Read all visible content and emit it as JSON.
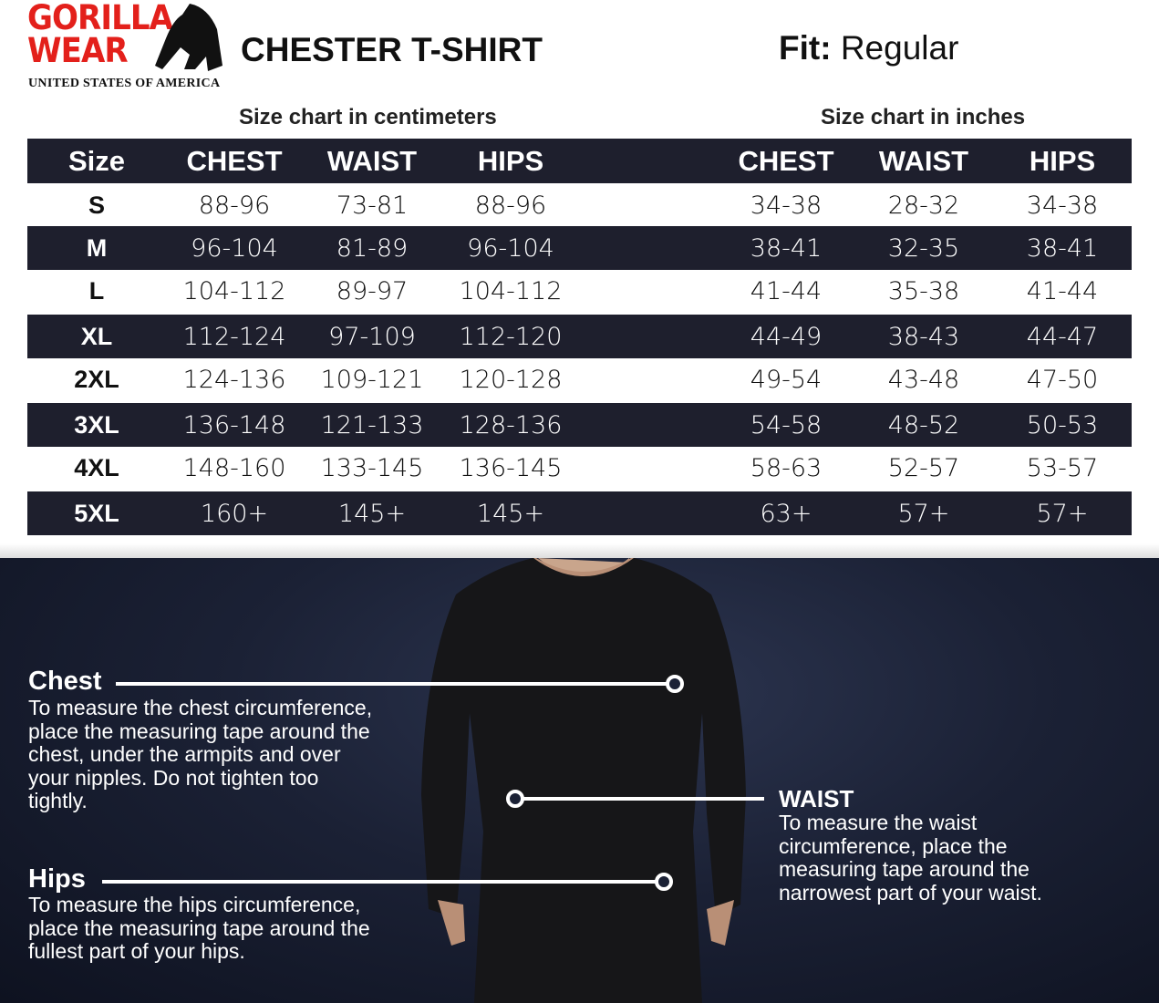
{
  "brand": {
    "line1": "GORILLA",
    "line2": "WEAR",
    "tagline": "UNITED STATES OF AMERICA",
    "color": "#e3201b"
  },
  "product": {
    "title": "CHESTER T-SHIRT",
    "fit_label": "Fit:",
    "fit_value": "Regular"
  },
  "cm_table": {
    "caption": "Size chart in centimeters",
    "headers": [
      "Size",
      "CHEST",
      "WAIST",
      "HIPS"
    ]
  },
  "in_table": {
    "caption": "Size chart in inches",
    "headers": [
      "CHEST",
      "WAIST",
      "HIPS"
    ]
  },
  "rows": [
    {
      "size": "S",
      "cm": [
        "88-96",
        "73-81",
        "88-96"
      ],
      "in": [
        "34-38",
        "28-32",
        "34-38"
      ]
    },
    {
      "size": "M",
      "cm": [
        "96-104",
        "81-89",
        "96-104"
      ],
      "in": [
        "38-41",
        "32-35",
        "38-41"
      ]
    },
    {
      "size": "L",
      "cm": [
        "104-112",
        "89-97",
        "104-112"
      ],
      "in": [
        "41-44",
        "35-38",
        "41-44"
      ]
    },
    {
      "size": "XL",
      "cm": [
        "112-124",
        "97-109",
        "112-120"
      ],
      "in": [
        "44-49",
        "38-43",
        "44-47"
      ]
    },
    {
      "size": "2XL",
      "cm": [
        "124-136",
        "109-121",
        "120-128"
      ],
      "in": [
        "49-54",
        "43-48",
        "47-50"
      ]
    },
    {
      "size": "3XL",
      "cm": [
        "136-148",
        "121-133",
        "128-136"
      ],
      "in": [
        "54-58",
        "48-52",
        "50-53"
      ]
    },
    {
      "size": "4XL",
      "cm": [
        "148-160",
        "133-145",
        "136-145"
      ],
      "in": [
        "58-63",
        "52-57",
        "53-57"
      ]
    },
    {
      "size": "5XL",
      "cm": [
        "160+",
        "145+",
        "145+"
      ],
      "in": [
        "63+",
        "57+",
        "57+"
      ]
    }
  ],
  "measure": {
    "chest": {
      "label": "Chest",
      "text": "To measure the chest circumference, place the measuring tape around the chest, under the armpits and over your nipples. Do not tighten too tightly."
    },
    "waist": {
      "label": "WAIST",
      "text": "To measure the waist circumference, place the measuring tape around the narrowest part of your waist."
    },
    "hips": {
      "label": "Hips",
      "text": "To measure the hips circumference, place the measuring tape around the fullest part of your hips."
    }
  },
  "colors": {
    "row_dark": "#1e1f2d",
    "bg_bottom": "#1b2135"
  }
}
